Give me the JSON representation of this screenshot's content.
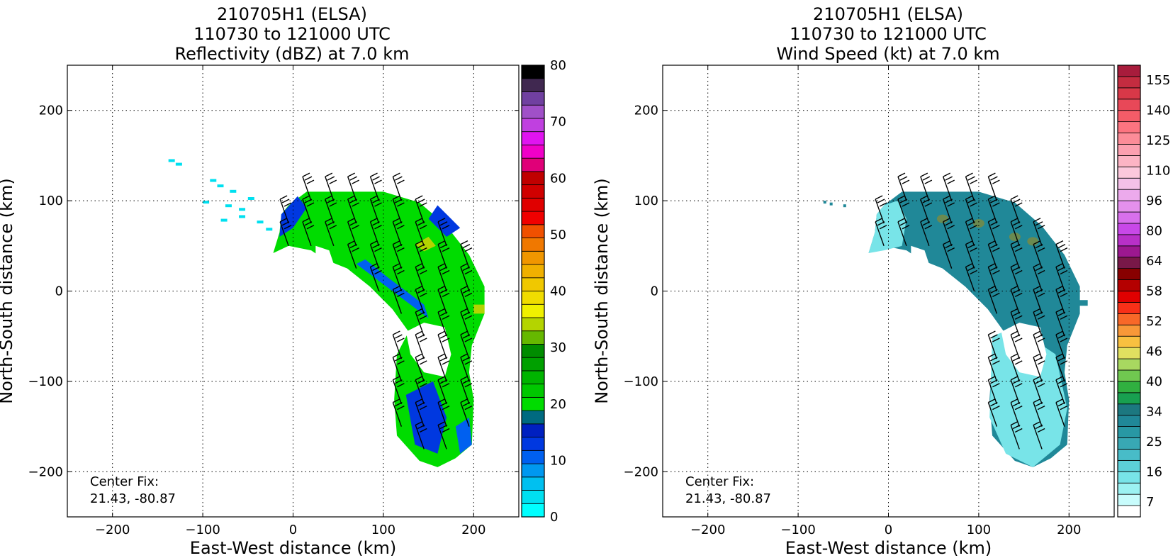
{
  "chart_data": [
    {
      "type": "heatmap",
      "title": [
        "210705H1 (ELSA)",
        "110730 to 121000 UTC",
        "Reflectivity (dBZ) at 7.0 km"
      ],
      "xlabel": "East-West distance (km)",
      "ylabel": "North-South distance (km)",
      "xlim": [
        -250,
        250
      ],
      "ylim": [
        -250,
        250
      ],
      "xticks": [
        -200,
        -100,
        0,
        100,
        200
      ],
      "yticks": [
        -200,
        -100,
        0,
        100,
        200
      ],
      "grid": true,
      "annotation": [
        "Center Fix:",
        "21.43, -80.87"
      ],
      "colorbar": {
        "min": 0,
        "max": 80,
        "tick_values": [
          0,
          10,
          20,
          30,
          40,
          50,
          60,
          70,
          80
        ],
        "colors": [
          "#00ffff",
          "#00e0f0",
          "#00c0f0",
          "#0098f0",
          "#0060f0",
          "#0038e0",
          "#0020c0",
          "#006a80",
          "#00dc00",
          "#00c800",
          "#00b400",
          "#00a000",
          "#008c00",
          "#66b800",
          "#b4d400",
          "#f0f000",
          "#f0dc00",
          "#f0c800",
          "#f0b000",
          "#f09600",
          "#f07800",
          "#f05000",
          "#f00000",
          "#e00000",
          "#d00000",
          "#c00000",
          "#e00078",
          "#f000c8",
          "#e014f0",
          "#c040e0",
          "#a050c8",
          "#7040a0",
          "#402850",
          "#000000"
        ]
      },
      "wind_barbs": true
    },
    {
      "type": "heatmap",
      "title": [
        "210705H1 (ELSA)",
        "110730 to 121000 UTC",
        "Wind Speed (kt) at 7.0 km"
      ],
      "xlabel": "East-West distance (km)",
      "ylabel": "North-South distance (km)",
      "xlim": [
        -250,
        250
      ],
      "ylim": [
        -250,
        250
      ],
      "xticks": [
        -200,
        -100,
        0,
        100,
        200
      ],
      "yticks": [
        -200,
        -100,
        0,
        100,
        200
      ],
      "grid": true,
      "annotation": [
        "Center Fix:",
        "21.43, -80.87"
      ],
      "colorbar": {
        "tick_labels": [
          "7",
          "16",
          "25",
          "34",
          "40",
          "46",
          "52",
          "58",
          "64",
          "80",
          "96",
          "110",
          "125",
          "140",
          "155"
        ],
        "colors": [
          "#ffffff",
          "#c8fcfc",
          "#9cf2f2",
          "#78e4e8",
          "#5cd0d8",
          "#48bcc8",
          "#38a8b4",
          "#2898a4",
          "#208898",
          "#1c7880",
          "#18a050",
          "#30b040",
          "#70c850",
          "#a8d860",
          "#e0e060",
          "#f8c040",
          "#f89838",
          "#f86828",
          "#f83018",
          "#e00000",
          "#b40000",
          "#880000",
          "#781848",
          "#9c1890",
          "#b830c8",
          "#c848e8",
          "#d870ec",
          "#e490ec",
          "#ecaaec",
          "#f4c0e8",
          "#fcc8dc",
          "#fcb4c4",
          "#fca0b0",
          "#fc8c98",
          "#fc7480",
          "#f45c68",
          "#e84858",
          "#d83848",
          "#c42c40",
          "#a81c3c"
        ]
      },
      "wind_barbs": true
    }
  ]
}
